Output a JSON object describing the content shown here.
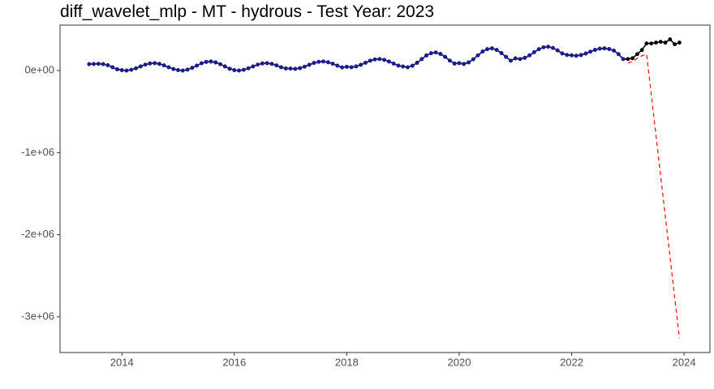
{
  "chart_data": {
    "type": "line",
    "title": "diff_wavelet_mlp - MT - hydrous - Test Year: 2023",
    "x": [
      2013.417,
      2013.5,
      2013.583,
      2013.667,
      2013.75,
      2013.833,
      2013.917,
      2014,
      2014.083,
      2014.167,
      2014.25,
      2014.333,
      2014.417,
      2014.5,
      2014.583,
      2014.667,
      2014.75,
      2014.833,
      2014.917,
      2015,
      2015.083,
      2015.167,
      2015.25,
      2015.333,
      2015.417,
      2015.5,
      2015.583,
      2015.667,
      2015.75,
      2015.833,
      2015.917,
      2016,
      2016.083,
      2016.167,
      2016.25,
      2016.333,
      2016.417,
      2016.5,
      2016.583,
      2016.667,
      2016.75,
      2016.833,
      2016.917,
      2017,
      2017.083,
      2017.167,
      2017.25,
      2017.333,
      2017.417,
      2017.5,
      2017.583,
      2017.667,
      2017.75,
      2017.833,
      2017.917,
      2018,
      2018.083,
      2018.167,
      2018.25,
      2018.333,
      2018.417,
      2018.5,
      2018.583,
      2018.667,
      2018.75,
      2018.833,
      2018.917,
      2019,
      2019.083,
      2019.167,
      2019.25,
      2019.333,
      2019.417,
      2019.5,
      2019.583,
      2019.667,
      2019.75,
      2019.833,
      2019.917,
      2020,
      2020.083,
      2020.167,
      2020.25,
      2020.333,
      2020.417,
      2020.5,
      2020.583,
      2020.667,
      2020.75,
      2020.833,
      2020.917,
      2021,
      2021.083,
      2021.167,
      2021.25,
      2021.333,
      2021.417,
      2021.5,
      2021.583,
      2021.667,
      2021.75,
      2021.833,
      2021.917,
      2022,
      2022.083,
      2022.167,
      2022.25,
      2022.333,
      2022.417,
      2022.5,
      2022.583,
      2022.667,
      2022.75,
      2022.833,
      2022.917,
      2023,
      2023.083,
      2023.167,
      2023.25,
      2023.333,
      2023.417,
      2023.5,
      2023.583,
      2023.667,
      2023.75,
      2023.833,
      2023.917
    ],
    "series": [
      {
        "color": "#000000",
        "markers": true,
        "dashed": false,
        "values": [
          78000,
          80000,
          82000,
          78000,
          65000,
          40000,
          15000,
          5000,
          0,
          9000,
          27000,
          50000,
          72000,
          86000,
          90000,
          81000,
          63000,
          40000,
          18000,
          5000,
          0,
          11000,
          33000,
          60000,
          88000,
          105000,
          110000,
          99000,
          77000,
          50000,
          22000,
          5000,
          0,
          9000,
          27000,
          50000,
          72000,
          86000,
          90000,
          81000,
          63000,
          40000,
          25000,
          24000,
          20000,
          29000,
          47000,
          70000,
          92000,
          106000,
          110000,
          101000,
          83000,
          60000,
          38000,
          45000,
          40000,
          50000,
          70000,
          95000,
          120000,
          135000,
          140000,
          130000,
          110000,
          85000,
          60000,
          49000,
          40000,
          58000,
          94000,
          139000,
          184000,
          211000,
          220000,
          202000,
          166000,
          121000,
          85000,
          90000,
          80000,
          99000,
          137000,
          185000,
          232000,
          260000,
          270000,
          251000,
          213000,
          166000,
          120000,
          148000,
          140000,
          155000,
          185000,
          223000,
          260000,
          283000,
          290000,
          275000,
          245000,
          208000,
          190000,
          185000,
          180000,
          189000,
          207000,
          230000,
          252000,
          266000,
          270000,
          261000,
          243000,
          200000,
          140000,
          140000,
          150000,
          200000,
          250000,
          330000,
          330000,
          340000,
          350000,
          340000,
          380000,
          320000,
          340000
        ]
      },
      {
        "color": "#1c1c8c",
        "markers": true,
        "dashed": false,
        "values": [
          78000,
          80000,
          82000,
          78000,
          65000,
          40000,
          15000,
          5000,
          0,
          9000,
          27000,
          50000,
          72000,
          86000,
          90000,
          81000,
          63000,
          40000,
          18000,
          5000,
          0,
          11000,
          33000,
          60000,
          88000,
          105000,
          110000,
          99000,
          77000,
          50000,
          22000,
          5000,
          0,
          9000,
          27000,
          50000,
          72000,
          86000,
          90000,
          81000,
          63000,
          40000,
          25000,
          24000,
          20000,
          29000,
          47000,
          70000,
          92000,
          106000,
          110000,
          101000,
          83000,
          60000,
          38000,
          45000,
          40000,
          50000,
          70000,
          95000,
          120000,
          135000,
          140000,
          130000,
          110000,
          85000,
          60000,
          49000,
          40000,
          58000,
          94000,
          139000,
          184000,
          211000,
          220000,
          202000,
          166000,
          121000,
          85000,
          90000,
          80000,
          99000,
          137000,
          185000,
          232000,
          260000,
          270000,
          251000,
          213000,
          166000,
          120000,
          148000,
          140000,
          155000,
          185000,
          223000,
          260000,
          283000,
          290000,
          275000,
          245000,
          208000,
          190000,
          185000,
          180000,
          189000,
          207000,
          230000,
          252000,
          266000,
          270000,
          261000,
          243000,
          200000,
          140000,
          null,
          null,
          null,
          null,
          null,
          null,
          null,
          null,
          null,
          null,
          null,
          null
        ]
      },
      {
        "color": "#ff0000",
        "markers": false,
        "dashed": true,
        "x": [
          2023,
          2023.083,
          2023.167,
          2023.25,
          2023.333,
          2023.417,
          2023.5,
          2023.583,
          2023.667,
          2023.75,
          2023.833,
          2023.917
        ],
        "values": [
          90000,
          110000,
          150000,
          180000,
          200000,
          -294000,
          -789000,
          -1283000,
          -1777000,
          -2271000,
          -2766000,
          -3260000
        ]
      }
    ],
    "xlim": [
      2012.9,
      2024.46
    ],
    "ylim": [
      -3435000,
      553000
    ],
    "xticks": [
      2014,
      2016,
      2018,
      2020,
      2022,
      2024
    ],
    "yticks": [
      {
        "value": -3000000,
        "label": "-3e+06"
      },
      {
        "value": -2000000,
        "label": "-2e+06"
      },
      {
        "value": -1000000,
        "label": "-1e+06"
      },
      {
        "value": 0,
        "label": "0e+00"
      }
    ],
    "grid": false
  }
}
